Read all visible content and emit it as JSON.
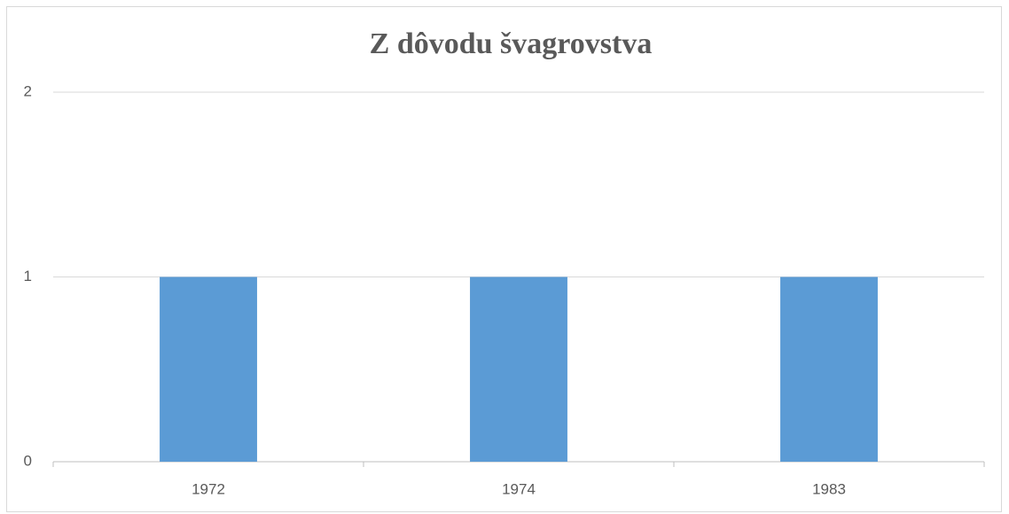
{
  "chart_data": {
    "type": "bar",
    "title": "Z dôvodu švagrovstva",
    "categories": [
      "1972",
      "1974",
      "1983"
    ],
    "values": [
      1,
      1,
      1
    ],
    "color": "#5b9bd5",
    "ylim": [
      0,
      2
    ],
    "yticks": [
      0,
      1,
      2
    ],
    "grid": true
  }
}
